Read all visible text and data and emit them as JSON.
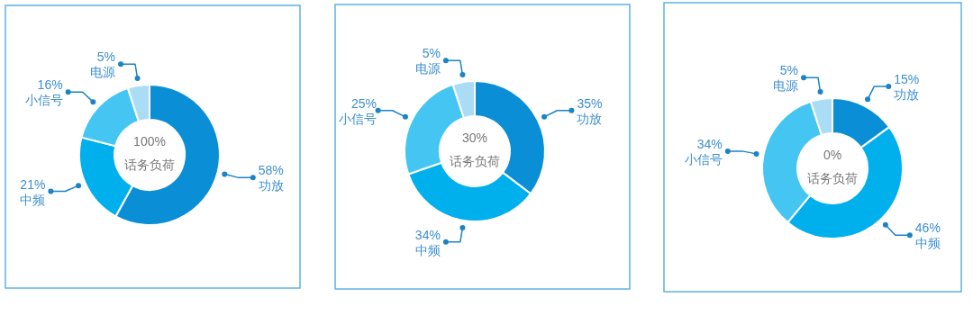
{
  "chart_data": [
    {
      "type": "donut",
      "categories": [
        "功放",
        "中频",
        "小信号",
        "电源"
      ],
      "values": [
        58,
        21,
        16,
        5
      ],
      "colors": [
        "#0a8fd6",
        "#00b0ec",
        "#45c6f2",
        "#aadcf5"
      ],
      "annotations": [
        "100%",
        "话务负荷"
      ],
      "value_labels": [
        "58%",
        "21%",
        "16%",
        "5%"
      ]
    },
    {
      "type": "donut",
      "categories": [
        "功放",
        "中频",
        "小信号",
        "电源"
      ],
      "values": [
        35,
        34,
        25,
        5
      ],
      "colors": [
        "#0a8fd6",
        "#00b0ec",
        "#45c6f2",
        "#aadcf5"
      ],
      "annotations": [
        "30%",
        "话务负荷"
      ],
      "value_labels": [
        "35%",
        "34%",
        "25%",
        "5%"
      ]
    },
    {
      "type": "donut",
      "categories": [
        "功放",
        "中频",
        "小信号",
        "电源"
      ],
      "values": [
        15,
        46,
        34,
        5
      ],
      "colors": [
        "#0a8fd6",
        "#00b0ec",
        "#45c6f2",
        "#aadcf5"
      ],
      "annotations": [
        "0%",
        "话务负荷"
      ],
      "value_labels": [
        "15%",
        "46%",
        "34%",
        "5%"
      ]
    }
  ]
}
